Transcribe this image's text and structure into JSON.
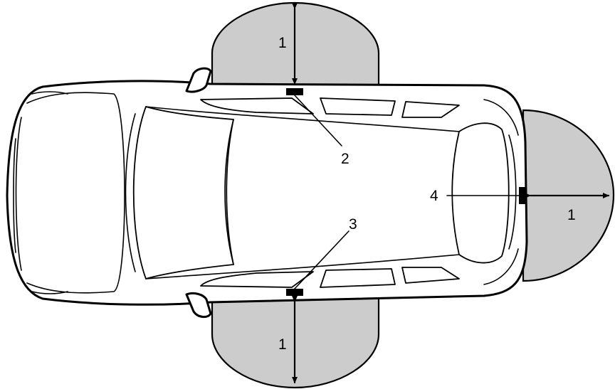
{
  "labels": {
    "range_top": "1",
    "range_bottom": "1",
    "range_rear": "1",
    "left_sensor": "2",
    "right_sensor": "3",
    "rear_sensor": "4"
  },
  "colors": {
    "zone_fill": "#cccccc",
    "line": "#000000",
    "background": "#ffffff"
  }
}
